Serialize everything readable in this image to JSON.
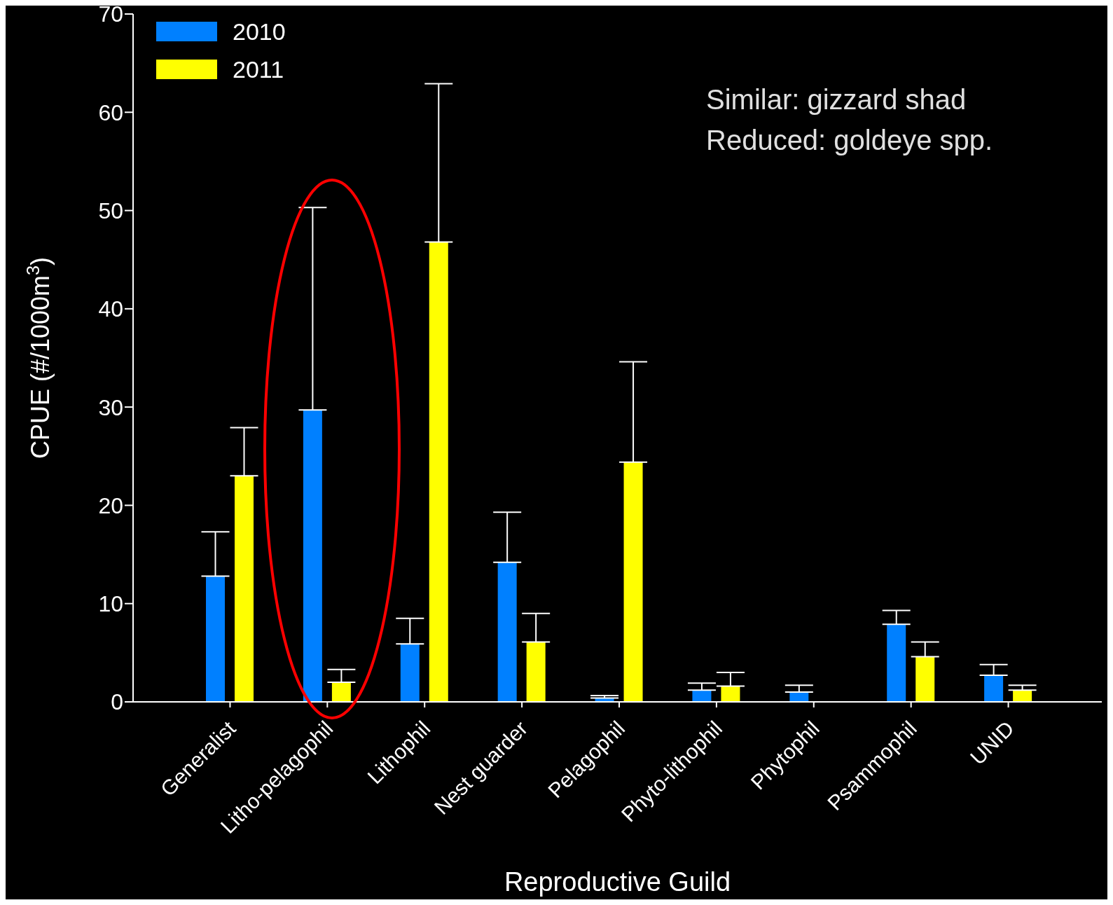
{
  "chart_data": {
    "type": "bar",
    "xlabel": "Reproductive Guild",
    "ylabel": "CPUE (#/1000m$^{3}$)",
    "categories": [
      "Generalist",
      "Litho-pelagophil",
      "Lithophil",
      "Nest guarder",
      "Pelagophil",
      "Phyto-lithophil",
      "Phytophil",
      "Psammophil",
      "UNID"
    ],
    "series": [
      {
        "name": "2010",
        "color": "#0080ff",
        "values": [
          12.8,
          29.7,
          5.9,
          14.2,
          0.4,
          1.2,
          1.0,
          7.9,
          2.7
        ],
        "errors": [
          [
            12.8,
            17.3
          ],
          [
            29.7,
            50.3
          ],
          [
            5.9,
            8.5
          ],
          [
            14.2,
            19.3
          ],
          [
            0.4,
            0.65
          ],
          [
            1.2,
            1.9
          ],
          [
            1.0,
            1.7
          ],
          [
            7.9,
            9.3
          ],
          [
            2.7,
            3.8
          ]
        ]
      },
      {
        "name": "2011",
        "color": "#ffff00",
        "values": [
          23.0,
          2.0,
          46.8,
          6.1,
          24.4,
          1.6,
          0,
          4.6,
          1.2
        ],
        "errors": [
          [
            23.0,
            27.9
          ],
          [
            2.0,
            3.3
          ],
          [
            46.8,
            62.9
          ],
          [
            6.1,
            9.0
          ],
          [
            24.4,
            34.6
          ],
          [
            1.6,
            3.0
          ],
          null,
          [
            4.6,
            6.1
          ],
          [
            1.2,
            1.7
          ]
        ]
      }
    ],
    "ylim": [
      0,
      70
    ],
    "yticks": [
      0,
      10,
      20,
      30,
      40,
      50,
      60,
      70
    ],
    "grid": false,
    "legend": "top left",
    "annotations": [
      "Similar: gizzard shad",
      "Reduced: goldeye spp."
    ]
  }
}
